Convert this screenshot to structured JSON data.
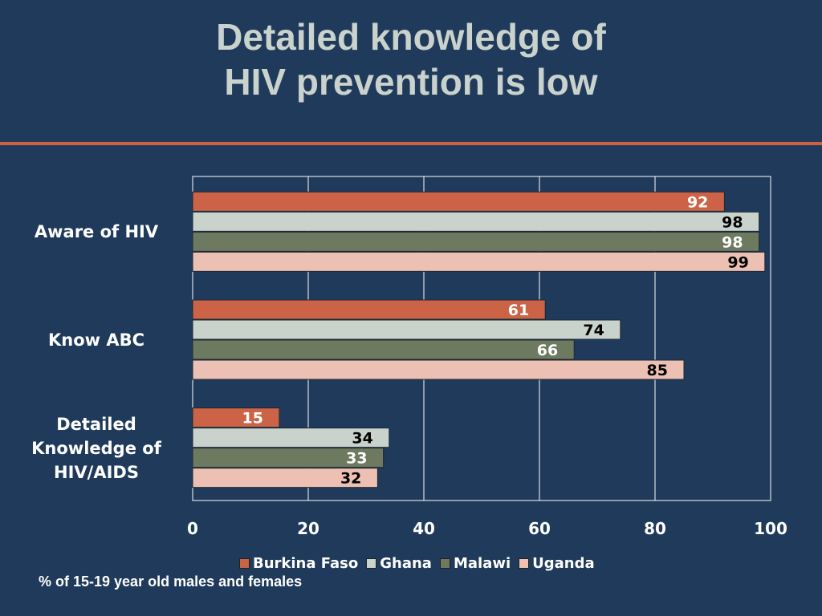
{
  "title_lines": [
    "Detailed knowledge of",
    "HIV prevention is low"
  ],
  "footnote": "% of 15-19 year old males and females",
  "colors": {
    "background": "#1f3a5a",
    "accent_rule": "#d0603f",
    "title": "#c9d2cc"
  },
  "chart_data": {
    "type": "bar",
    "orientation": "horizontal",
    "title": "",
    "xlabel": "",
    "ylabel": "",
    "categories": [
      "Aware of HIV",
      "Know ABC",
      "Detailed Knowledge of HIV/AIDS"
    ],
    "category_lines": [
      [
        "Aware of HIV"
      ],
      [
        "Know ABC"
      ],
      [
        "Detailed",
        "Knowledge of",
        "HIV/AIDS"
      ]
    ],
    "series": [
      {
        "name": "Burkina Faso",
        "color": "#cc6346",
        "label_color": "#ffffff",
        "values": [
          92,
          61,
          15
        ]
      },
      {
        "name": "Ghana",
        "color": "#c9d2cb",
        "label_color": "#000000",
        "values": [
          98,
          74,
          34
        ]
      },
      {
        "name": "Malawi",
        "color": "#6e7a60",
        "label_color": "#ffffff",
        "values": [
          98,
          66,
          33
        ]
      },
      {
        "name": "Uganda",
        "color": "#ecc0b2",
        "label_color": "#000000",
        "values": [
          99,
          85,
          32
        ]
      }
    ],
    "xlim": [
      0,
      100
    ],
    "x_ticks": [
      0,
      20,
      40,
      60,
      80,
      100
    ],
    "grid": "vertical",
    "legend_position": "bottom"
  }
}
